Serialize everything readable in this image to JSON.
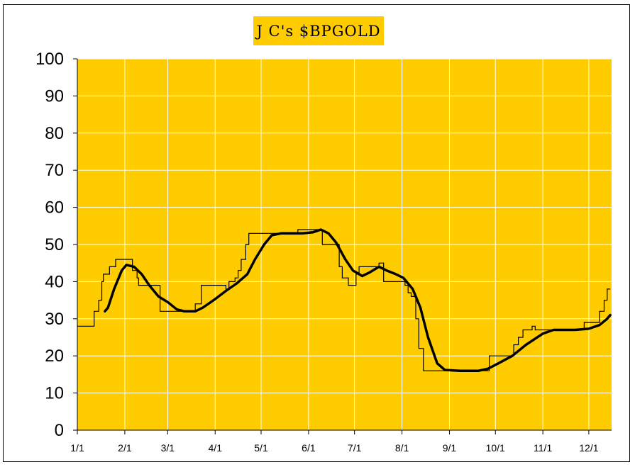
{
  "chart_data": {
    "type": "line",
    "title": "J C's $BPGOLD",
    "xlabel": "",
    "ylabel": "",
    "ylim": [
      0,
      100
    ],
    "yticks": [
      "0",
      "10",
      "20",
      "30",
      "40",
      "50",
      "60",
      "70",
      "80",
      "90",
      "100"
    ],
    "xticks": [
      "1/1",
      "2/1",
      "3/1",
      "4/1",
      "5/1",
      "6/1",
      "7/1",
      "8/1",
      "9/1",
      "10/1",
      "11/1",
      "12/1"
    ],
    "grid": true,
    "colors": {
      "plot_bg": "#FFCC00",
      "title_bg": "#FFCC00",
      "grid": "#FFFFFF",
      "line": "#000000"
    },
    "series": [
      {
        "style": "thin-step",
        "points": [
          [
            "1/1",
            28
          ],
          [
            "1/11",
            28
          ],
          [
            "1/12",
            32
          ],
          [
            "1/15",
            35
          ],
          [
            "1/17",
            40
          ],
          [
            "1/18",
            42
          ],
          [
            "1/22",
            44
          ],
          [
            "1/26",
            46
          ],
          [
            "2/5",
            46
          ],
          [
            "2/6",
            43
          ],
          [
            "2/9",
            41
          ],
          [
            "2/10",
            39
          ],
          [
            "2/20",
            39
          ],
          [
            "2/24",
            32
          ],
          [
            "3/15",
            32
          ],
          [
            "3/19",
            34
          ],
          [
            "3/23",
            39
          ],
          [
            "4/3",
            39
          ],
          [
            "4/8",
            38
          ],
          [
            "4/10",
            40
          ],
          [
            "4/14",
            41
          ],
          [
            "4/16",
            43
          ],
          [
            "4/18",
            46
          ],
          [
            "4/21",
            50
          ],
          [
            "4/23",
            53
          ],
          [
            "5/3",
            53
          ],
          [
            "5/8",
            53
          ],
          [
            "5/22",
            53
          ],
          [
            "5/25",
            54
          ],
          [
            "6/8",
            54
          ],
          [
            "6/10",
            50
          ],
          [
            "6/18",
            50
          ],
          [
            "6/21",
            44
          ],
          [
            "6/23",
            41
          ],
          [
            "6/27",
            39
          ],
          [
            "6/30",
            39
          ],
          [
            "7/2",
            42
          ],
          [
            "7/4",
            44
          ],
          [
            "7/12",
            44
          ],
          [
            "7/17",
            45
          ],
          [
            "7/20",
            40
          ],
          [
            "7/31",
            40
          ],
          [
            "8/3",
            39
          ],
          [
            "8/5",
            37
          ],
          [
            "8/7",
            36
          ],
          [
            "8/10",
            30
          ],
          [
            "8/12",
            22
          ],
          [
            "8/15",
            16
          ],
          [
            "8/31",
            16
          ],
          [
            "9/26",
            16
          ],
          [
            "9/27",
            20
          ],
          [
            "10/11",
            20
          ],
          [
            "10/13",
            23
          ],
          [
            "10/16",
            25
          ],
          [
            "10/19",
            27
          ],
          [
            "10/25",
            28
          ],
          [
            "10/27",
            27
          ],
          [
            "11/26",
            27
          ],
          [
            "11/28",
            29
          ],
          [
            "12/6",
            29
          ],
          [
            "12/8",
            32
          ],
          [
            "12/11",
            35
          ],
          [
            "12/13",
            38
          ],
          [
            "12/15",
            38
          ]
        ]
      },
      {
        "style": "thick-smoothed",
        "points": [
          [
            "1/19",
            32
          ],
          [
            "1/21",
            33
          ],
          [
            "1/25",
            38
          ],
          [
            "1/30",
            43
          ],
          [
            "2/2",
            44.5
          ],
          [
            "2/7",
            44
          ],
          [
            "2/12",
            42
          ],
          [
            "2/17",
            39
          ],
          [
            "2/23",
            36
          ],
          [
            "3/1",
            34.5
          ],
          [
            "3/7",
            32.5
          ],
          [
            "3/12",
            32
          ],
          [
            "3/19",
            32
          ],
          [
            "3/24",
            33
          ],
          [
            "3/31",
            35
          ],
          [
            "4/8",
            37.5
          ],
          [
            "4/15",
            39.5
          ],
          [
            "4/22",
            42
          ],
          [
            "4/27",
            46
          ],
          [
            "5/3",
            50
          ],
          [
            "5/8",
            52.5
          ],
          [
            "5/14",
            53
          ],
          [
            "5/21",
            53
          ],
          [
            "5/28",
            53
          ],
          [
            "6/4",
            53.3
          ],
          [
            "6/9",
            54
          ],
          [
            "6/14",
            53
          ],
          [
            "6/19",
            50.5
          ],
          [
            "6/25",
            46
          ],
          [
            "6/30",
            43
          ],
          [
            "7/6",
            41.5
          ],
          [
            "7/11",
            42.5
          ],
          [
            "7/17",
            44
          ],
          [
            "7/22",
            43
          ],
          [
            "7/28",
            42
          ],
          [
            "8/2",
            41
          ],
          [
            "8/8",
            38
          ],
          [
            "8/13",
            33
          ],
          [
            "8/18",
            25
          ],
          [
            "8/24",
            18
          ],
          [
            "8/29",
            16.2
          ],
          [
            "9/8",
            16
          ],
          [
            "9/20",
            16
          ],
          [
            "9/26",
            16.5
          ],
          [
            "10/3",
            18
          ],
          [
            "10/12",
            20
          ],
          [
            "10/21",
            23
          ],
          [
            "11/1",
            26
          ],
          [
            "11/8",
            27
          ],
          [
            "11/22",
            27
          ],
          [
            "12/1",
            27.3
          ],
          [
            "12/8",
            28.3
          ],
          [
            "12/13",
            30
          ],
          [
            "12/15",
            31
          ]
        ]
      }
    ]
  }
}
